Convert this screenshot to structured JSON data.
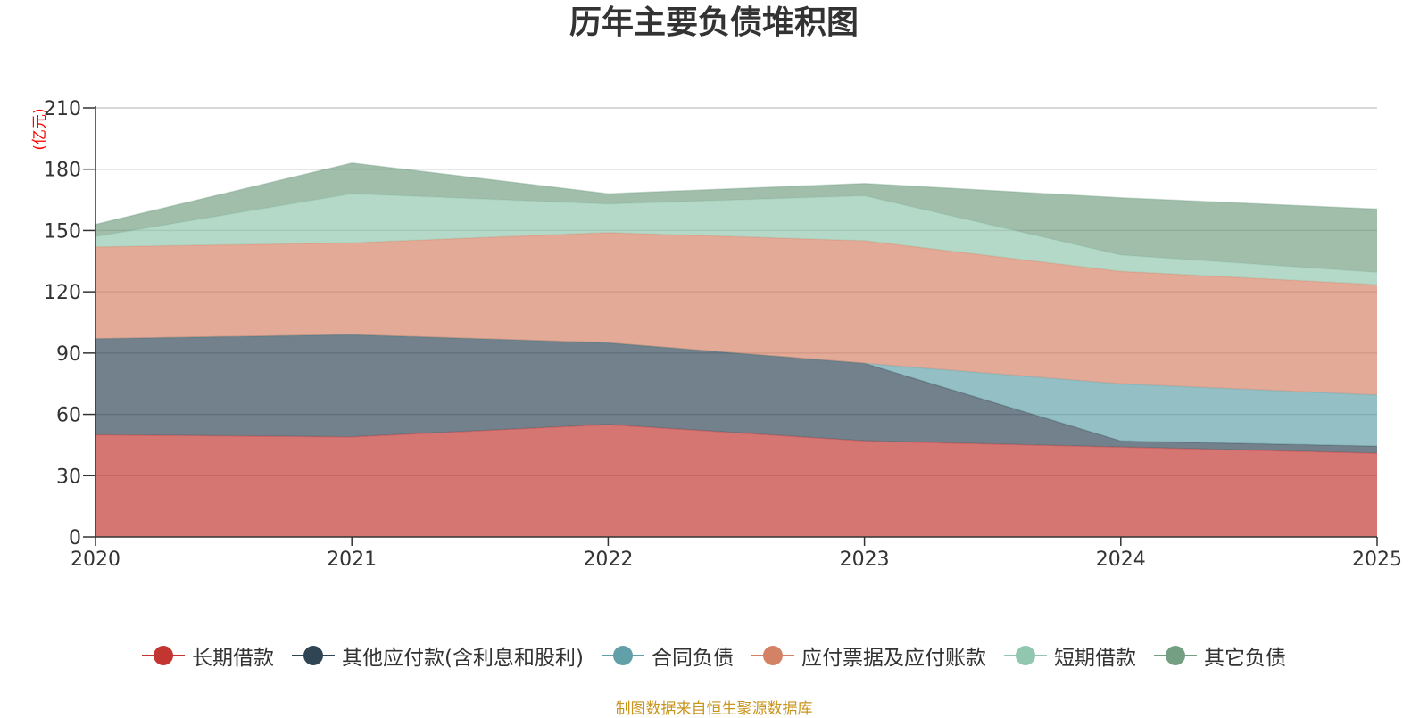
{
  "chart_data": {
    "type": "area",
    "stacked": true,
    "title": "历年主要负债堆积图",
    "unit_label": "(亿元)",
    "x": [
      "2020",
      "2021",
      "2022",
      "2023",
      "2024",
      "2025"
    ],
    "ylim": [
      0,
      210
    ],
    "yticks": [
      0,
      30,
      60,
      90,
      120,
      150,
      180,
      210
    ],
    "grid": true,
    "legend_position": "bottom",
    "series": [
      {
        "name": "长期借款",
        "color": "#c23531",
        "values": [
          50,
          49,
          55,
          47,
          44,
          41
        ]
      },
      {
        "name": "其他应付款(含利息和股利)",
        "color": "#2f4554",
        "values": [
          47,
          50,
          40,
          38,
          3,
          3.5
        ]
      },
      {
        "name": "合同负债",
        "color": "#61a0a8",
        "values": [
          0,
          0,
          0,
          0,
          28,
          25
        ]
      },
      {
        "name": "应付票据及应付账款",
        "color": "#d48265",
        "values": [
          45,
          45,
          54,
          60,
          55,
          54
        ]
      },
      {
        "name": "短期借款",
        "color": "#91c7ae",
        "values": [
          5,
          24,
          14,
          22,
          8,
          6
        ]
      },
      {
        "name": "其它负债",
        "color": "#749f83",
        "values": [
          6,
          15,
          5,
          6,
          28,
          31
        ]
      }
    ]
  },
  "source_note": "制图数据来自恒生聚源数据库"
}
